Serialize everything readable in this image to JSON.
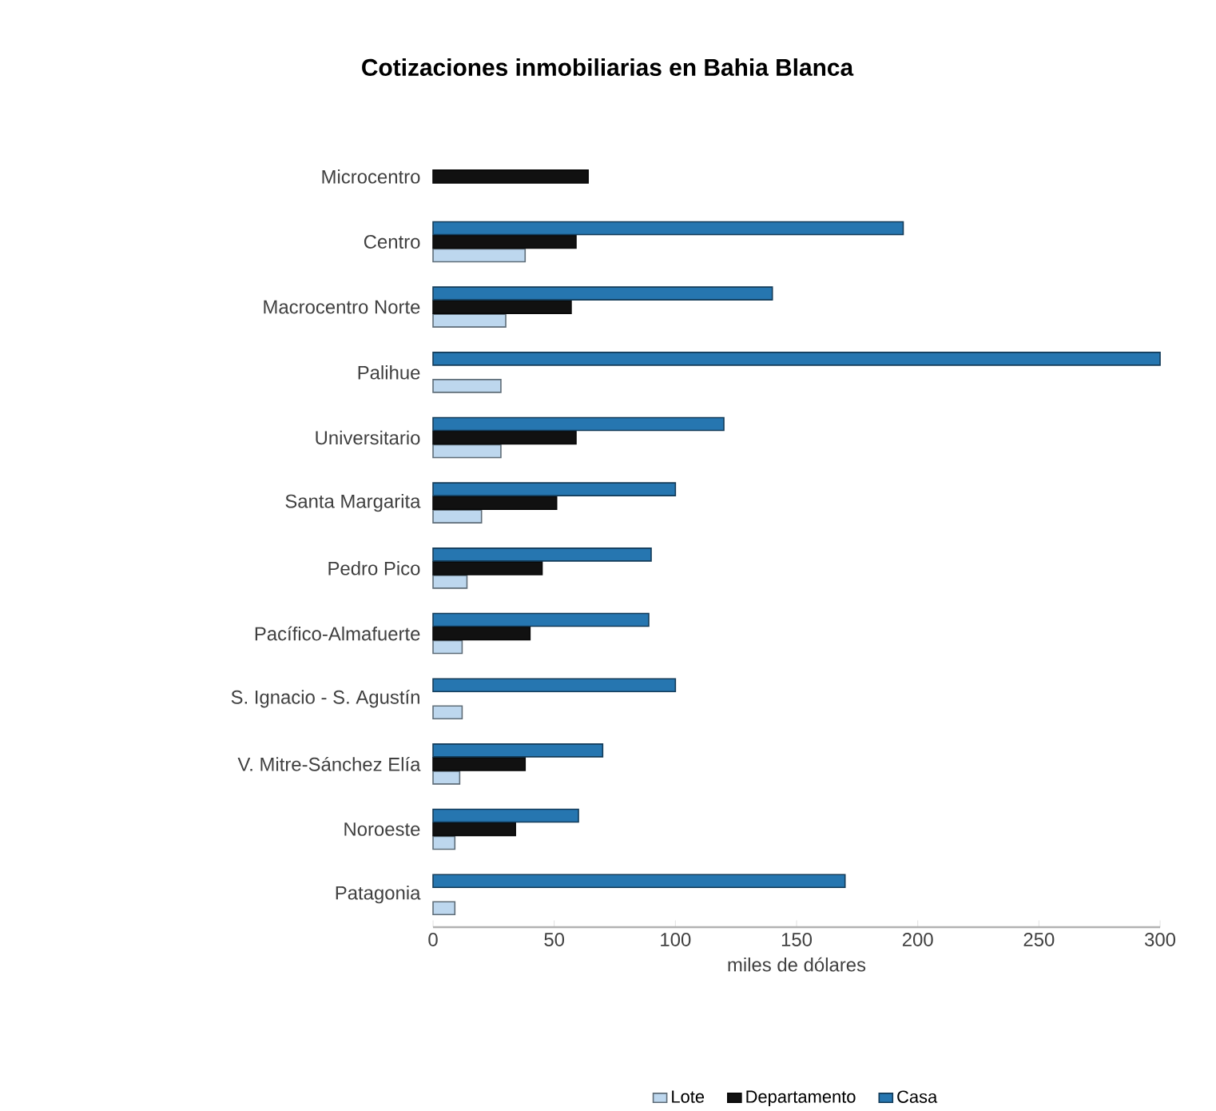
{
  "chart_data": {
    "type": "bar",
    "orientation": "horizontal",
    "title": "Cotizaciones inmobiliarias en Bahia Blanca",
    "xlabel": "miles de dólares",
    "categories": [
      "Microcentro",
      "Centro",
      "Macrocentro Norte",
      "Palihue",
      "Universitario",
      "Santa Margarita",
      "Pedro Pico",
      "Pacífico-Almafuerte",
      "S. Ignacio - S. Agustín",
      "V. Mitre-Sánchez Elía",
      "Noroeste",
      "Patagonia"
    ],
    "series": [
      {
        "name": "Lote",
        "color": "#bdd7ee",
        "values": [
          null,
          38,
          30,
          28,
          28,
          20,
          14,
          12,
          12,
          11,
          9,
          9
        ]
      },
      {
        "name": "Departamento",
        "color": "#111111",
        "values": [
          64,
          59,
          57,
          null,
          59,
          51,
          45,
          40,
          null,
          38,
          34,
          null
        ]
      },
      {
        "name": "Casa",
        "color": "#2676b0",
        "values": [
          null,
          194,
          140,
          300,
          120,
          100,
          90,
          89,
          100,
          70,
          60,
          170
        ]
      }
    ],
    "xlim": [
      0,
      300
    ],
    "xticks": [
      0,
      50,
      100,
      150,
      200,
      250,
      300
    ],
    "grid": false,
    "legend": "bottom"
  }
}
